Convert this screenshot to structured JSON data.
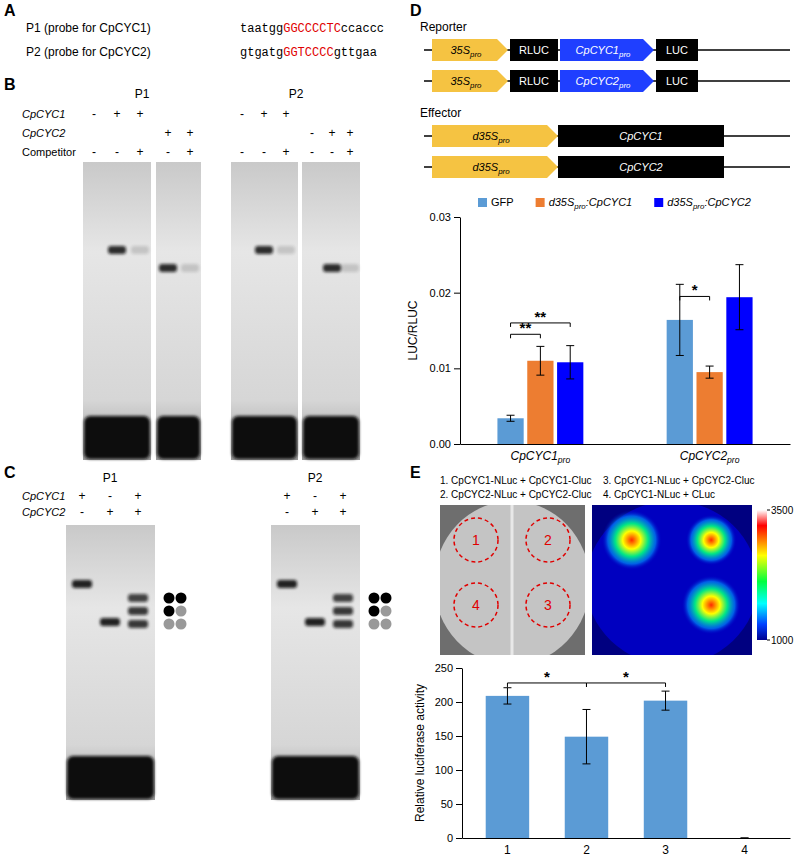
{
  "panel_labels": [
    "A",
    "B",
    "C",
    "D",
    "E"
  ],
  "A": {
    "probes": [
      {
        "label": "P1 (probe for CpCYC1)",
        "seq": [
          "taatgg",
          "GGCCCCTC",
          "ccaccc"
        ]
      },
      {
        "label": "P2 (probe for CpCYC2)",
        "seq": [
          "gtgatg",
          "GGTCCCC",
          "gttgaa"
        ]
      }
    ]
  },
  "B": {
    "row_labels": [
      "CpCYC1",
      "CpCYC2",
      "Competitor"
    ],
    "groups": [
      {
        "probe": "P1",
        "signs": [
          [
            "-",
            "+",
            "+",
            null,
            null
          ],
          [
            null,
            null,
            null,
            "+",
            "+"
          ],
          [
            "-",
            "-",
            "+",
            "-",
            "+"
          ]
        ]
      },
      {
        "probe": "P2",
        "signs": [
          [
            "-",
            "+",
            "+",
            null,
            null,
            null
          ],
          [
            null,
            null,
            null,
            "-",
            "+",
            "+"
          ],
          [
            "-",
            "-",
            "+",
            "-",
            "-",
            "+"
          ]
        ]
      }
    ]
  },
  "C": {
    "row_labels": [
      "CpCYC1",
      "CpCYC2"
    ],
    "groups": [
      {
        "probe": "P1",
        "signs": [
          [
            "+",
            "-",
            "+"
          ],
          [
            "-",
            "+",
            "+"
          ]
        ]
      },
      {
        "probe": "P2",
        "signs": [
          [
            "+",
            "-",
            "+"
          ],
          [
            "-",
            "+",
            "+"
          ]
        ]
      }
    ]
  },
  "D": {
    "reporter_title": "Reporter",
    "effector_title": "Effector",
    "reporters": [
      [
        "35Spro",
        "RLUC",
        "CpCYC1pro",
        "LUC"
      ],
      [
        "35Spro",
        "RLUC",
        "CpCYC2pro",
        "LUC"
      ]
    ],
    "effectors": [
      [
        "d35Spro",
        "CpCYC1"
      ],
      [
        "d35Spro",
        "CpCYC2"
      ]
    ]
  },
  "E": {
    "legend_items": [
      "1. CpCYC1-NLuc + CpCYC1-Cluc",
      "2. CpCYC2-NLuc + CpCYC2-Cluc",
      "3. CpCYC1-NLuc + CpCYC2-Cluc",
      "4. CpCYC1-NLuc + CLuc"
    ],
    "spots": [
      "1",
      "2",
      "3",
      "4"
    ],
    "colorbar": {
      "range": [
        1000,
        3500
      ],
      "ticks": [
        1000,
        3500
      ]
    }
  },
  "chart_data": [
    {
      "type": "bar",
      "ylabel": "LUC/RLUC",
      "categories": [
        "CpCYC1pro",
        "CpCYC2pro"
      ],
      "series": [
        {
          "name": "GFP",
          "color": "#5b9bd5",
          "values": [
            0.0034,
            0.0164
          ],
          "errors": [
            0.0004,
            0.0047
          ]
        },
        {
          "name": "d35Spro:CpCYC1",
          "color": "#ed7d31",
          "values": [
            0.011,
            0.0095
          ],
          "errors": [
            0.0019,
            0.0008
          ]
        },
        {
          "name": "d35Spro:CpCYC2",
          "color": "#0000ff",
          "values": [
            0.0108,
            0.0194
          ],
          "errors": [
            0.0022,
            0.0043
          ]
        }
      ],
      "ylim": [
        0,
        0.03
      ],
      "yticks": [
        {
          "value": 0,
          "label": "0.00"
        },
        {
          "value": 0.01,
          "label": "0.01"
        },
        {
          "value": 0.02,
          "label": "0.02"
        },
        {
          "value": 0.03,
          "label": "0.03"
        }
      ],
      "legend": "top",
      "annotations": [
        {
          "text": "**",
          "category": 0,
          "from": 0,
          "to": 1,
          "y": 0.0145
        },
        {
          "text": "**",
          "category": 0,
          "from": 0,
          "to": 2,
          "y": 0.016
        },
        {
          "text": "*",
          "category": 1,
          "from": 0,
          "to": 1,
          "y": 0.0195
        }
      ]
    },
    {
      "type": "bar",
      "ylabel": "Relative luciferase activity",
      "categories": [
        "1",
        "2",
        "3",
        "4"
      ],
      "values": [
        209,
        149,
        202,
        0
      ],
      "errors": [
        12,
        40,
        14,
        0
      ],
      "color": "#5b9bd5",
      "ylim": [
        0,
        250
      ],
      "yticks": [
        0,
        50,
        100,
        150,
        200,
        250
      ],
      "annotations": [
        {
          "text": "*",
          "from": 0,
          "to": 1,
          "y": 228
        },
        {
          "text": "*",
          "from": 1,
          "to": 2,
          "y": 228
        }
      ]
    }
  ]
}
